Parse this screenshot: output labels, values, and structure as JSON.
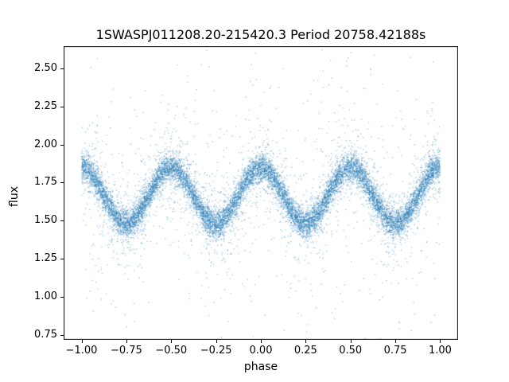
{
  "chart_data": {
    "type": "scatter",
    "title": "1SWASPJ011208.20-215420.3 Period 20758.42188s",
    "xlabel": "phase",
    "ylabel": "flux",
    "xlim": [
      -1.1,
      1.1
    ],
    "ylim": [
      0.718,
      2.645
    ],
    "xticks": [
      -1.0,
      -0.75,
      -0.5,
      -0.25,
      0.0,
      0.25,
      0.5,
      0.75,
      1.0
    ],
    "xtick_labels": [
      "−1.00",
      "−0.75",
      "−0.50",
      "−0.25",
      "0.00",
      "0.25",
      "0.50",
      "0.75",
      "1.00"
    ],
    "yticks": [
      0.75,
      1.0,
      1.25,
      1.5,
      1.75,
      2.0,
      2.25,
      2.5
    ],
    "ytick_labels": [
      "0.75",
      "1.00",
      "1.25",
      "1.50",
      "1.75",
      "2.00",
      "2.25",
      "2.50"
    ],
    "marker_color": "#1f77b4",
    "marker_alpha": 0.5,
    "marker_size_px": 1.2,
    "n_points": 14000,
    "seed": 42,
    "grid": false,
    "legend": "none",
    "model": {
      "description": "phase-folded light curve, flux = mean + amplitude*cos(4*pi*phase)",
      "mean_flux": 1.665,
      "amplitude": 0.185,
      "wave_period_in_phase": 0.5,
      "peaks_at_phase": [
        -1.0,
        -0.5,
        0.0,
        0.5,
        1.0
      ],
      "peak_flux": 1.85,
      "troughs_at_phase": [
        -0.75,
        -0.25,
        0.25,
        0.75
      ],
      "trough_flux": 1.48
    },
    "noise": {
      "components": [
        {
          "weight": 0.78,
          "sigma": 0.045
        },
        {
          "weight": 0.16,
          "sigma": 0.13
        },
        {
          "weight": 0.06,
          "sigma": 0.45
        }
      ],
      "outlier_flux_range": [
        0.72,
        2.55
      ]
    },
    "trend": {
      "phase": [
        -1.0,
        -0.875,
        -0.75,
        -0.625,
        -0.5,
        -0.375,
        -0.25,
        -0.125,
        0.0,
        0.125,
        0.25,
        0.375,
        0.5,
        0.625,
        0.75,
        0.875,
        1.0
      ],
      "flux": [
        1.85,
        1.665,
        1.48,
        1.665,
        1.85,
        1.665,
        1.48,
        1.665,
        1.85,
        1.665,
        1.48,
        1.665,
        1.85,
        1.665,
        1.48,
        1.665,
        1.85
      ]
    }
  }
}
